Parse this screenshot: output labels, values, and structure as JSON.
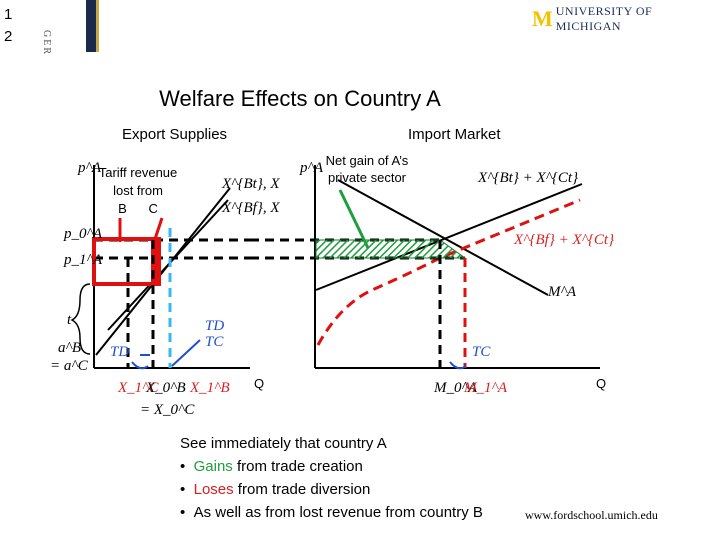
{
  "slide": {
    "number": "1\n2"
  },
  "header": {
    "side_tag": "GER",
    "logo_mark": "M",
    "logo_text": "UNIVERSITY OF MICHIGAN"
  },
  "title": "Welfare Effects on Country A",
  "panels": {
    "export": {
      "label": "Export Supplies",
      "y_axis": "p^A",
      "callout": [
        "Tariff revenue",
        "lost from",
        "B      C"
      ],
      "curves": [
        "X^{Bt}, X",
        "X^{Bf}, X"
      ],
      "prices": [
        "p_0^A",
        "p_1^A"
      ],
      "t_label": "t",
      "aB": "a^B",
      "aC": "= a^C",
      "TD_left": "TD",
      "TD_right": "TD",
      "TC_right": "TC",
      "x_axis": "Q",
      "x_ticks": [
        "X_1^C",
        "X_0^B",
        "X_1^B"
      ],
      "x_sub": "= X_0^C"
    },
    "import": {
      "label": "Import Market",
      "y_axis": "p^A",
      "callout": [
        "Net gain of A’s",
        "private sector"
      ],
      "curves": [
        "X^{Bt} + X^{Ct}",
        "X^{Bf} + X^{Ct}",
        "M^A"
      ],
      "TC": "TC",
      "x_axis": "Q",
      "x_ticks": [
        "M_0^A",
        "M_1^A"
      ]
    }
  },
  "bullets": {
    "intro": "See immediately that country A",
    "items": [
      {
        "em": "Gains",
        "rest": " from trade creation",
        "color": "#1e9e3c"
      },
      {
        "em": "Loses",
        "rest": " from trade diversion",
        "color": "#d81f1f"
      },
      {
        "em": "",
        "rest": "As well as from lost revenue from country B",
        "color": "#000000"
      }
    ],
    "bullet_char": "•"
  },
  "footer": {
    "url": "www.fordschool.umich.edu"
  }
}
